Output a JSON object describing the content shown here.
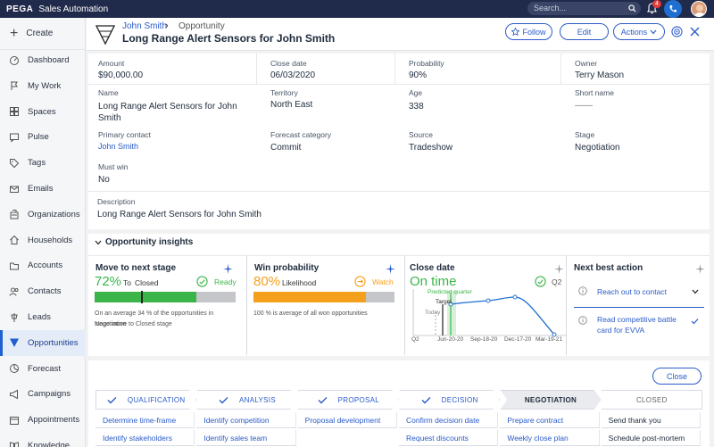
{
  "topbar": {
    "logo": "PEGA",
    "app_name": "Sales Automation",
    "search_placeholder": "Search...",
    "notification_count": "4"
  },
  "sidebar": {
    "create_label": "Create",
    "items": [
      {
        "label": "Dashboard",
        "icon": "dashboard-icon"
      },
      {
        "label": "My Work",
        "icon": "flag-icon"
      },
      {
        "label": "Spaces",
        "icon": "spaces-icon"
      },
      {
        "label": "Pulse",
        "icon": "chat-icon"
      },
      {
        "label": "Tags",
        "icon": "tag-icon"
      },
      {
        "label": "Emails",
        "icon": "mail-icon"
      },
      {
        "label": "Organizations",
        "icon": "building-icon"
      },
      {
        "label": "Households",
        "icon": "house-icon"
      },
      {
        "label": "Accounts",
        "icon": "folder-icon"
      },
      {
        "label": "Contacts",
        "icon": "contacts-icon"
      },
      {
        "label": "Leads",
        "icon": "leads-icon"
      },
      {
        "label": "Opportunities",
        "icon": "funnel-icon",
        "active": true
      },
      {
        "label": "Forecast",
        "icon": "pie-icon"
      },
      {
        "label": "Campaigns",
        "icon": "megaphone-icon"
      },
      {
        "label": "Appointments",
        "icon": "calendar-icon"
      },
      {
        "label": "Knowledge",
        "icon": "book-icon"
      }
    ]
  },
  "header": {
    "breadcrumb_link": "John Smith",
    "breadcrumb_type": "Opportunity",
    "title": "Long Range Alert Sensors for John Smith",
    "follow_label": "Follow",
    "edit_label": "Edit",
    "actions_label": "Actions"
  },
  "details": {
    "amount_label": "Amount",
    "amount": "$90,000.00",
    "close_date_label": "Close date",
    "close_date": "06/03/2020",
    "probability_label": "Probability",
    "probability": "90%",
    "owner_label": "Owner",
    "owner": "Terry Mason",
    "name_label": "Name",
    "name_line1": "Long Range Alert Sensors for John",
    "name_line2": "Smith",
    "territory_label": "Territory",
    "territory": "North East",
    "age_label": "Age",
    "age": "338",
    "short_name_label": "Short name",
    "short_name": "——",
    "primary_contact_label": "Primary contact",
    "primary_contact": "John Smith",
    "forecast_label": "Forecast category",
    "forecast": "Commit",
    "source_label": "Source",
    "source": "Tradeshow",
    "stage_label": "Stage",
    "stage": "Negotiation",
    "must_win_label": "Must win",
    "must_win": "No",
    "description_label": "Description",
    "description": "Long Range Alert Sensors for John Smith"
  },
  "insights": {
    "title": "Opportunity insights",
    "move": {
      "title": "Move to next stage",
      "percent": "72%",
      "to": "To",
      "target": "Closed",
      "status": "Ready",
      "progress": 0.72,
      "note_line1": "On an average 34 % of the opportunities in Negotiation",
      "note_line2": "stage move to Closed  stage",
      "color": "#3bb54a"
    },
    "win": {
      "title": "Win probability",
      "percent": "80%",
      "sub": "Likelihood",
      "status": "Watch",
      "progress": 0.8,
      "note": "100 % is  average of all won opportunities",
      "color": "#f5a01d"
    },
    "close": {
      "title": "Close date",
      "status": "On time",
      "quarter": "Q2",
      "labels": {
        "predicted": "Predicted quarter",
        "target": "Target",
        "today": "Today"
      },
      "x_ticks": [
        "Q2",
        "Jun-20-20",
        "Sep-18-20",
        "Dec-17-20",
        "Mar-19-21"
      ]
    },
    "nba": {
      "title": "Next best action",
      "action1": "Reach out to contact",
      "action2_line1": "Read competitive battle",
      "action2_line2": "card for EVVA"
    }
  },
  "stages": {
    "close_label": "Close",
    "chevrons": [
      "QUALIFICATION",
      "ANALYSIS",
      "PROPOSAL",
      "DECISION",
      "NEGOTIATION",
      "CLOSED"
    ],
    "tasks": [
      [
        "Determine time-frame",
        "Identify stakeholders"
      ],
      [
        "Identify competition",
        "Identify sales team"
      ],
      [
        "Proposal development",
        ""
      ],
      [
        "Confirm decision date",
        "Request discounts"
      ],
      [
        "Prepare contract",
        "Weekly close plan"
      ],
      [
        "Send thank you",
        "Schedule post-mortem"
      ]
    ]
  },
  "colors": {
    "topbar": "#202a4a",
    "accent": "#2a5bc9",
    "active_stage": "#e9ebef"
  }
}
